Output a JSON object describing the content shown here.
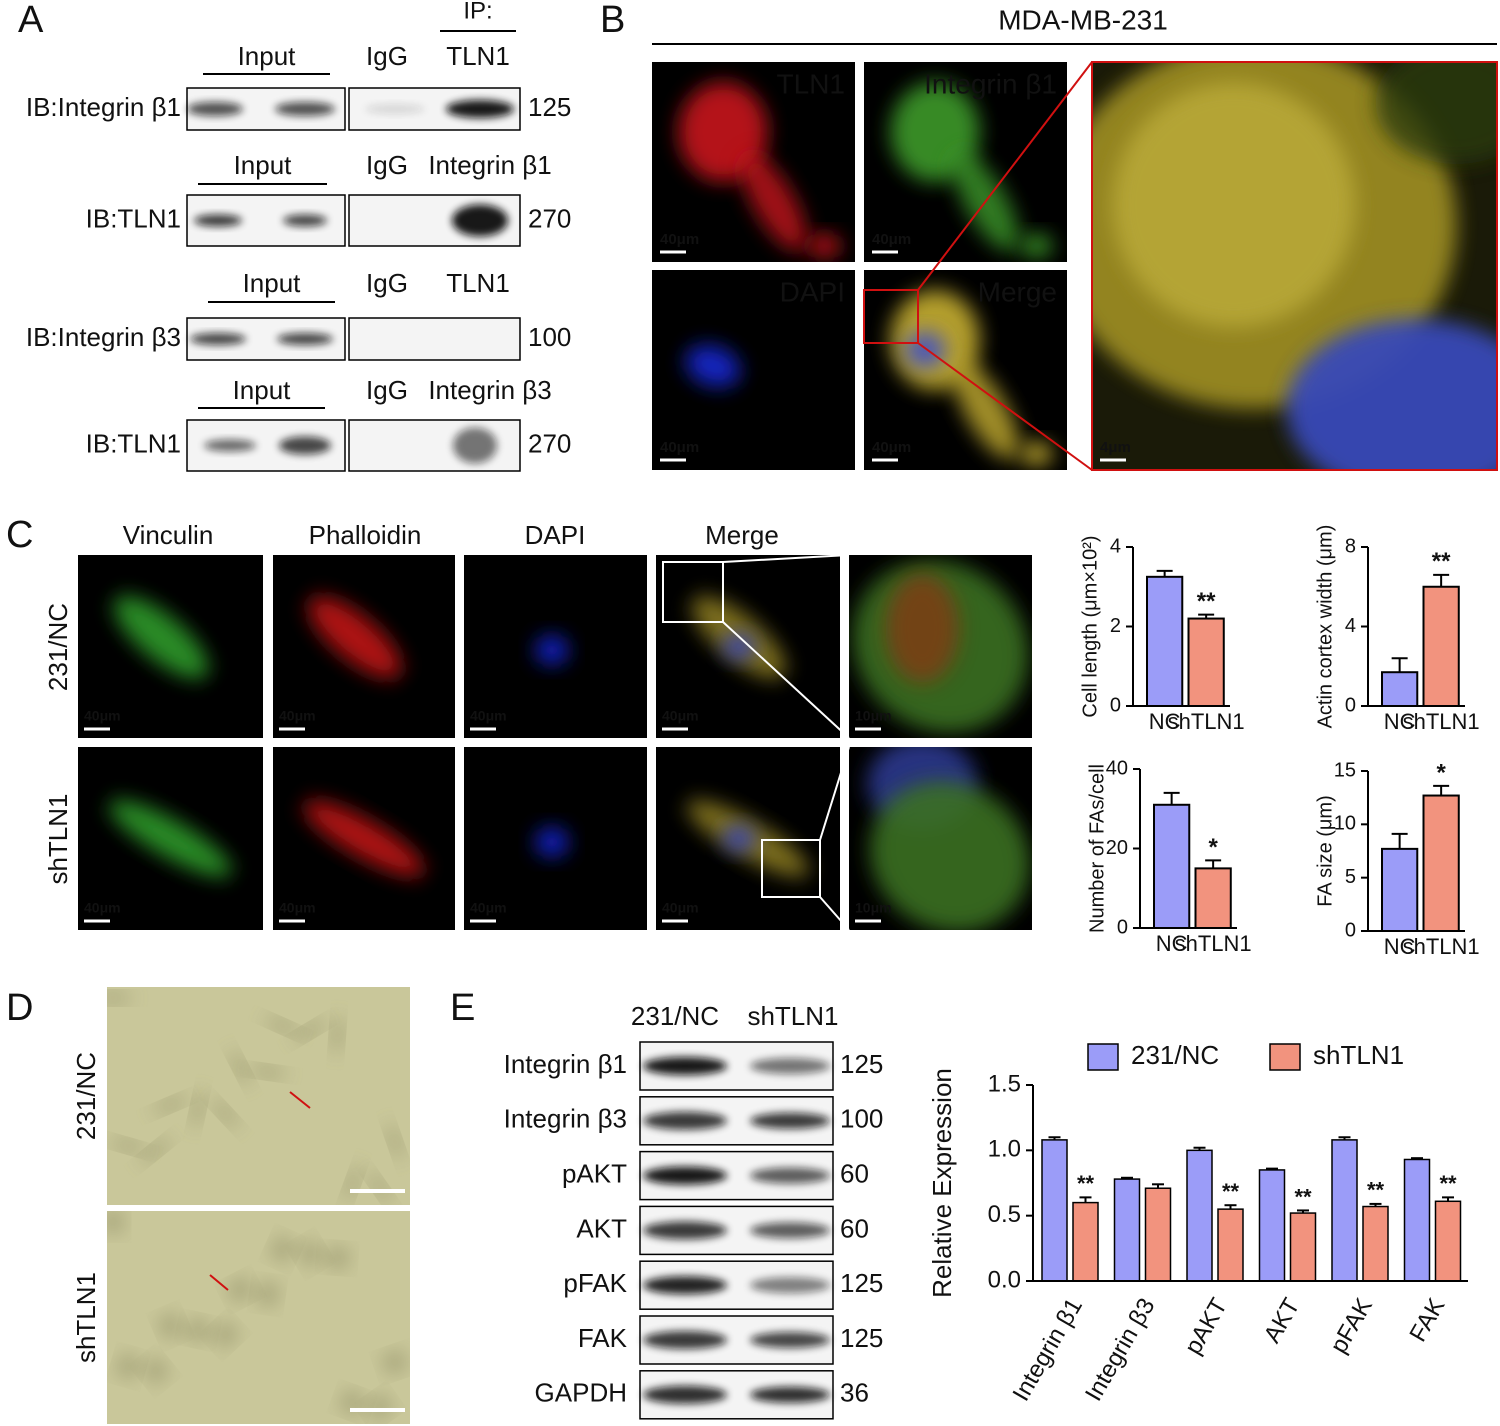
{
  "figure": {
    "A": {
      "label": "A",
      "ip": "IP:",
      "blots": [
        {
          "input": "Input",
          "igg": "IgG",
          "target": "TLN1",
          "ib": "IB:Integrin β1",
          "mw": 125
        },
        {
          "input": "Input",
          "igg": "IgG",
          "target": "Integrin β1",
          "ib": "IB:TLN1",
          "mw": 270
        },
        {
          "input": "Input",
          "igg": "IgG",
          "target": "TLN1",
          "ib": "IB:Integrin β3",
          "mw": 100
        },
        {
          "input": "Input",
          "igg": "IgG",
          "target": "Integrin β3",
          "ib": "IB:TLN1",
          "mw": 270
        }
      ]
    },
    "B": {
      "label": "B",
      "title": "MDA-MB-231",
      "channels": [
        "TLN1",
        "Integrin β1",
        "DAPI",
        "Merge"
      ],
      "scale_bars": [
        "40μm",
        "40μm",
        "40μm",
        "40μm",
        "4μm"
      ]
    },
    "C": {
      "label": "C",
      "stains": [
        "Vinculin",
        "Phalloidin",
        "DAPI",
        "Merge"
      ],
      "rows": [
        "231/NC",
        "shTLN1"
      ],
      "scale_bars": [
        "40μm",
        "40μm",
        "40μm",
        "40μm",
        "10μm"
      ]
    },
    "D": {
      "label": "D",
      "rows": [
        "231/NC",
        "shTLN1"
      ]
    },
    "E": {
      "label": "E",
      "columns": [
        "231/NC",
        "shTLN1"
      ],
      "blots": [
        {
          "name": "Integrin β1",
          "mw": 125
        },
        {
          "name": "Integrin β3",
          "mw": 100
        },
        {
          "name": "pAKT",
          "mw": 60
        },
        {
          "name": "AKT",
          "mw": 60
        },
        {
          "name": "pFAK",
          "mw": 125
        },
        {
          "name": "FAK",
          "mw": 125
        },
        {
          "name": "GAPDH",
          "mw": 36
        }
      ]
    }
  },
  "chart_data": [
    {
      "type": "bar",
      "y_label": "Cell length (μm×10²)",
      "categories": [
        "NC",
        "shTLN1"
      ],
      "category_colors": [
        "#1a1aff",
        "#e8121b"
      ],
      "colors": [
        "#9b9cf8",
        "#f2937e"
      ],
      "values": [
        3.25,
        2.2
      ],
      "errors": [
        0.15,
        0.1
      ],
      "significance": [
        null,
        "**"
      ],
      "ylim": [
        0,
        4
      ],
      "yticks": [
        0,
        2,
        4
      ]
    },
    {
      "type": "bar",
      "y_label": "Actin cortex width (μm)",
      "categories": [
        "NC",
        "shTLN1"
      ],
      "category_colors": [
        "#1a1aff",
        "#e8121b"
      ],
      "colors": [
        "#9b9cf8",
        "#f2937e"
      ],
      "values": [
        1.7,
        6.0
      ],
      "errors": [
        0.7,
        0.6
      ],
      "significance": [
        null,
        "**"
      ],
      "ylim": [
        0,
        8
      ],
      "yticks": [
        0,
        4,
        8
      ]
    },
    {
      "type": "bar",
      "y_label": "Number of FAs/cell",
      "categories": [
        "NC",
        "shTLN1"
      ],
      "category_colors": [
        "#1a1aff",
        "#e8121b"
      ],
      "colors": [
        "#9b9cf8",
        "#f2937e"
      ],
      "values": [
        31,
        15
      ],
      "errors": [
        3,
        2
      ],
      "significance": [
        null,
        "*"
      ],
      "ylim": [
        0,
        40
      ],
      "yticks": [
        0,
        20,
        40
      ]
    },
    {
      "type": "bar",
      "y_label": "FA size (μm)",
      "categories": [
        "NC",
        "shTLN1"
      ],
      "category_colors": [
        "#1a1aff",
        "#e8121b"
      ],
      "colors": [
        "#9b9cf8",
        "#f2937e"
      ],
      "values": [
        7.7,
        12.7
      ],
      "errors": [
        1.4,
        0.9
      ],
      "significance": [
        null,
        "*"
      ],
      "ylim": [
        0,
        15
      ],
      "yticks": [
        0,
        5,
        10,
        15
      ]
    },
    {
      "type": "grouped_bar",
      "y_label": "Relative Expression",
      "categories": [
        "Integrin β1",
        "Integrin β3",
        "pAKT",
        "AKT",
        "pFAK",
        "FAK"
      ],
      "series": [
        {
          "name": "231/NC",
          "color": "#9b9cf8",
          "values": [
            1.08,
            0.78,
            1.0,
            0.85,
            1.08,
            0.93
          ],
          "errors": [
            0.02,
            0.01,
            0.02,
            0.01,
            0.02,
            0.01
          ]
        },
        {
          "name": "shTLN1",
          "color": "#f2937e",
          "values": [
            0.6,
            0.71,
            0.55,
            0.52,
            0.57,
            0.61
          ],
          "errors": [
            0.04,
            0.03,
            0.03,
            0.02,
            0.02,
            0.03
          ],
          "significance": [
            "**",
            null,
            "**",
            "**",
            "**",
            "**"
          ]
        }
      ],
      "ylim": [
        0,
        1.5
      ],
      "yticks": [
        {
          "value": 0,
          "label": "0.0"
        },
        {
          "value": 0.5,
          "label": "0.5"
        },
        {
          "value": 1,
          "label": "1.0"
        },
        {
          "value": 1.5,
          "label": "1.5"
        }
      ],
      "legend": "top"
    }
  ]
}
